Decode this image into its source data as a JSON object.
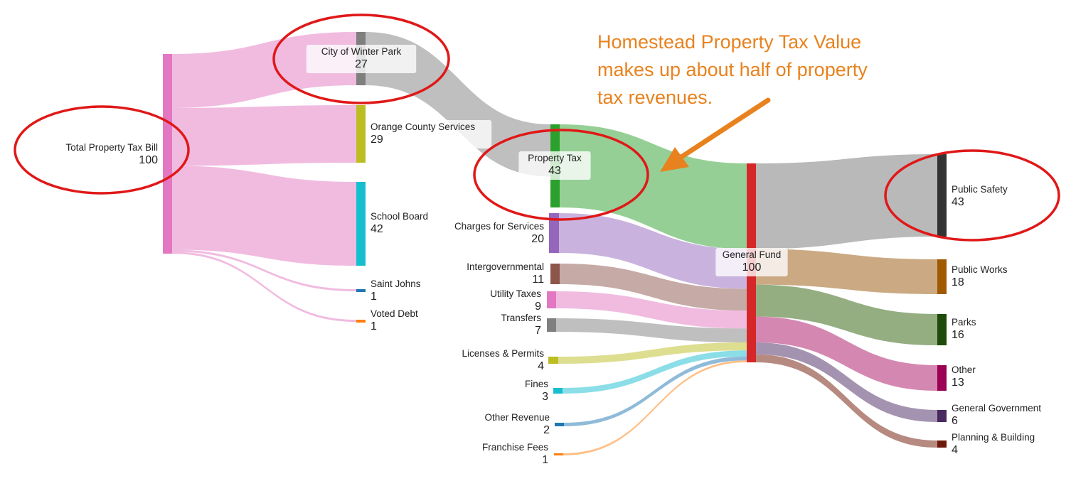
{
  "annotation": {
    "lines": [
      "Homestead Property Tax Value",
      "makes up about half of property",
      "tax revenues."
    ],
    "color": "#e8821e"
  },
  "highlight_color": "#e01818",
  "chart_data": {
    "type": "sankey",
    "title": "",
    "nodes": [
      {
        "id": "total",
        "name": "Total Property Tax Bill",
        "value": 100,
        "color": "#e377c2"
      },
      {
        "id": "city",
        "name": "City of Winter Park",
        "value": 27,
        "color": "#7f7f7f"
      },
      {
        "id": "orange",
        "name": "Orange County Services",
        "value": 29,
        "color": "#bcbd22"
      },
      {
        "id": "school",
        "name": "School Board",
        "value": 42,
        "color": "#17becf"
      },
      {
        "id": "stjohns",
        "name": "Saint Johns",
        "value": 1,
        "color": "#1f77b4"
      },
      {
        "id": "voted",
        "name": "Voted Debt",
        "value": 1,
        "color": "#ff7f0e"
      },
      {
        "id": "proptax",
        "name": "Property Tax",
        "value": 43,
        "color": "#2ca02c"
      },
      {
        "id": "charges",
        "name": "Charges for Services",
        "value": 20,
        "color": "#9467bd"
      },
      {
        "id": "intergov",
        "name": "Intergovernmental",
        "value": 11,
        "color": "#8c564b"
      },
      {
        "id": "utility",
        "name": "Utility Taxes",
        "value": 9,
        "color": "#e377c2"
      },
      {
        "id": "transfers",
        "name": "Transfers",
        "value": 7,
        "color": "#7f7f7f"
      },
      {
        "id": "licenses",
        "name": "Licenses & Permits",
        "value": 4,
        "color": "#bcbd22"
      },
      {
        "id": "fines",
        "name": "Fines",
        "value": 3,
        "color": "#17becf"
      },
      {
        "id": "otherrev",
        "name": "Other Revenue",
        "value": 2,
        "color": "#1f77b4"
      },
      {
        "id": "franchise",
        "name": "Franchise Fees",
        "value": 1,
        "color": "#ff7f0e"
      },
      {
        "id": "general",
        "name": "General Fund",
        "value": 100,
        "color": "#d62728"
      },
      {
        "id": "safety",
        "name": "Public Safety",
        "value": 43,
        "color": "#333333"
      },
      {
        "id": "works",
        "name": "Public Works",
        "value": 18,
        "color": "#a05a00"
      },
      {
        "id": "parks",
        "name": "Parks",
        "value": 16,
        "color": "#1e4a0a"
      },
      {
        "id": "other",
        "name": "Other",
        "value": 13,
        "color": "#9c0055"
      },
      {
        "id": "govt",
        "name": "General Government",
        "value": 6,
        "color": "#4a2860"
      },
      {
        "id": "planning",
        "name": "Planning & Building",
        "value": 4,
        "color": "#6e1a0a"
      }
    ],
    "links": [
      {
        "source": "total",
        "target": "city",
        "value": 27
      },
      {
        "source": "total",
        "target": "orange",
        "value": 29
      },
      {
        "source": "total",
        "target": "school",
        "value": 42
      },
      {
        "source": "total",
        "target": "stjohns",
        "value": 1
      },
      {
        "source": "total",
        "target": "voted",
        "value": 1
      },
      {
        "source": "city",
        "target": "proptax",
        "value": 27
      },
      {
        "source": "proptax",
        "target": "general",
        "value": 43
      },
      {
        "source": "charges",
        "target": "general",
        "value": 20
      },
      {
        "source": "intergov",
        "target": "general",
        "value": 11
      },
      {
        "source": "utility",
        "target": "general",
        "value": 9
      },
      {
        "source": "transfers",
        "target": "general",
        "value": 7
      },
      {
        "source": "licenses",
        "target": "general",
        "value": 4
      },
      {
        "source": "fines",
        "target": "general",
        "value": 3
      },
      {
        "source": "otherrev",
        "target": "general",
        "value": 2
      },
      {
        "source": "franchise",
        "target": "general",
        "value": 1
      },
      {
        "source": "general",
        "target": "safety",
        "value": 43
      },
      {
        "source": "general",
        "target": "works",
        "value": 18
      },
      {
        "source": "general",
        "target": "parks",
        "value": 16
      },
      {
        "source": "general",
        "target": "other",
        "value": 13
      },
      {
        "source": "general",
        "target": "govt",
        "value": 6
      },
      {
        "source": "general",
        "target": "planning",
        "value": 4
      }
    ],
    "highlighted_nodes": [
      "total",
      "city",
      "proptax",
      "safety"
    ]
  }
}
